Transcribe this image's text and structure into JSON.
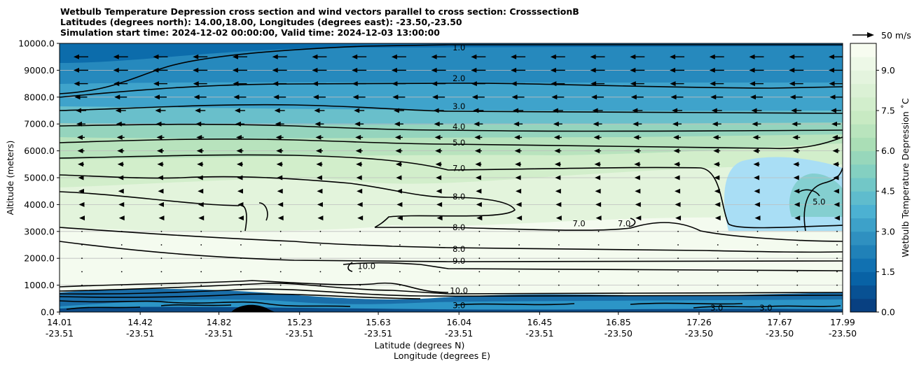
{
  "chart_data": {
    "type": "cross-section-contour",
    "title_lines": [
      "Wetbulb Temperature Depression cross section and wind vectors parallel to cross section: CrosssectionB",
      "Latitudes (degrees north): 14.00,18.00, Longitudes (degrees east): -23.50,-23.50",
      "Simulation start time: 2024-12-02 00:00:00, Valid time: 2024-12-03 13:00:00"
    ],
    "ylabel": "Altitude (meters)",
    "xlabel_lat": "Latitude (degrees N)",
    "xlabel_lon": "Longitude (degrees E)",
    "ylim": [
      0,
      10000
    ],
    "y_ticks": [
      "0.0",
      "1000.0",
      "2000.0",
      "3000.0",
      "4000.0",
      "5000.0",
      "6000.0",
      "7000.0",
      "8000.0",
      "9000.0",
      "10000.0"
    ],
    "xlim": [
      14.01,
      17.99
    ],
    "x_ticks": [
      {
        "lat": "14.01",
        "lon": "-23.51",
        "pos": 14.01
      },
      {
        "lat": "14.42",
        "lon": "-23.51",
        "pos": 14.42
      },
      {
        "lat": "14.82",
        "lon": "-23.51",
        "pos": 14.82
      },
      {
        "lat": "15.23",
        "lon": "-23.51",
        "pos": 15.23
      },
      {
        "lat": "15.63",
        "lon": "-23.51",
        "pos": 15.63
      },
      {
        "lat": "16.04",
        "lon": "-23.51",
        "pos": 16.04
      },
      {
        "lat": "16.45",
        "lon": "-23.51",
        "pos": 16.45
      },
      {
        "lat": "16.85",
        "lon": "-23.50",
        "pos": 16.85
      },
      {
        "lat": "17.26",
        "lon": "-23.50",
        "pos": 17.26
      },
      {
        "lat": "17.67",
        "lon": "-23.50",
        "pos": 17.67
      },
      {
        "lat": "17.99",
        "lon": "-23.50",
        "pos": 17.99
      }
    ],
    "colorbar": {
      "label": "Wetbulb Temperature Depression ˚C",
      "range": [
        0,
        10
      ],
      "ticks": [
        "0.0",
        "1.5",
        "3.0",
        "4.5",
        "6.0",
        "7.5",
        "9.0"
      ],
      "tick_values": [
        0,
        1.5,
        3,
        4.5,
        6,
        7.5,
        9
      ],
      "colors": [
        "#084081",
        "#0868ac",
        "#2b8cbe",
        "#4eb3d3",
        "#7bccc4",
        "#a8ddb5",
        "#ccebc5",
        "#e0f3db",
        "#f7fcf0"
      ]
    },
    "wind_key": "50 m/s",
    "contours": [
      {
        "label": "1.0",
        "lat": 16.04,
        "alt": 9850
      },
      {
        "label": "2.0",
        "lat": 16.04,
        "alt": 8700
      },
      {
        "label": "3.0",
        "lat": 16.04,
        "alt": 7650
      },
      {
        "label": "4.0",
        "lat": 16.04,
        "alt": 6900
      },
      {
        "label": "5.0",
        "lat": 16.04,
        "alt": 6300
      },
      {
        "label": "7.0",
        "lat": 16.04,
        "alt": 5350
      },
      {
        "label": "8.0",
        "lat": 16.04,
        "alt": 4300
      },
      {
        "label": "8.0",
        "lat": 16.04,
        "alt": 3150
      },
      {
        "label": "8.0",
        "lat": 16.04,
        "alt": 2350
      },
      {
        "label": "9.0",
        "lat": 16.04,
        "alt": 1900
      },
      {
        "label": "10.0",
        "lat": 16.04,
        "alt": 800
      },
      {
        "label": "3.0",
        "lat": 16.04,
        "alt": 250
      },
      {
        "label": "7.0",
        "lat": 16.88,
        "alt": 3300
      },
      {
        "label": "7.0",
        "lat": 16.65,
        "alt": 3300
      },
      {
        "label": "5.0",
        "lat": 17.87,
        "alt": 4100
      },
      {
        "label": "10.0",
        "lat": 15.57,
        "alt": 1700
      },
      {
        "label": "3.0",
        "lat": 17.35,
        "alt": 150
      },
      {
        "label": "3.0",
        "lat": 17.6,
        "alt": 150
      }
    ]
  }
}
